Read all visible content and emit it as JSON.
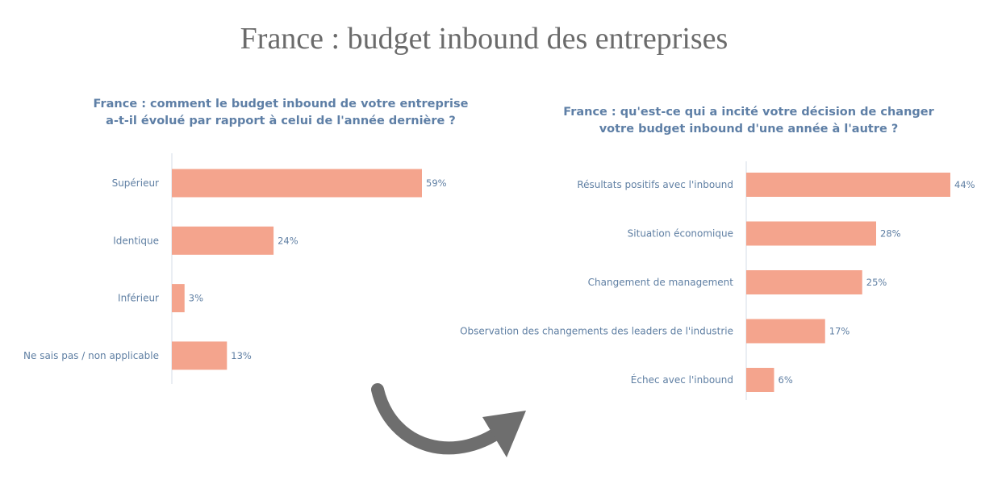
{
  "page": {
    "title": "France : budget inbound des entreprises"
  },
  "colors": {
    "bar": "#f4a48d",
    "title_text": "#6b6b6b",
    "chart_title": "#5e7fa6",
    "label_text": "#5f7fa3",
    "arrow": "#6e6e6e"
  },
  "icons": {
    "arrow": "curved-arrow-right-icon"
  },
  "chart_data": [
    {
      "type": "bar",
      "orientation": "horizontal",
      "title_lines": [
        "France : comment le budget inbound de votre entreprise",
        "a-t-il évolué par rapport à celui de l'année dernière ?"
      ],
      "categories": [
        "Supérieur",
        "Identique",
        "Inférieur",
        "Ne sais pas / non applicable"
      ],
      "values": [
        59,
        24,
        3,
        13
      ],
      "value_labels": [
        "59%",
        "24%",
        "3%",
        "13%"
      ],
      "unit": "%",
      "xlim": [
        0,
        59
      ]
    },
    {
      "type": "bar",
      "orientation": "horizontal",
      "title_lines": [
        "France : qu'est-ce qui a incité votre décision de changer",
        "votre budget inbound d'une année à l'autre ?"
      ],
      "categories": [
        "Résultats positifs avec l'inbound",
        "Situation économique",
        "Changement de management",
        "Observation des changements des leaders de l'industrie",
        "Échec avec l'inbound"
      ],
      "values": [
        44,
        28,
        25,
        17,
        6
      ],
      "value_labels": [
        "44%",
        "28%",
        "25%",
        "17%",
        "6%"
      ],
      "unit": "%",
      "xlim": [
        0,
        44
      ]
    }
  ]
}
